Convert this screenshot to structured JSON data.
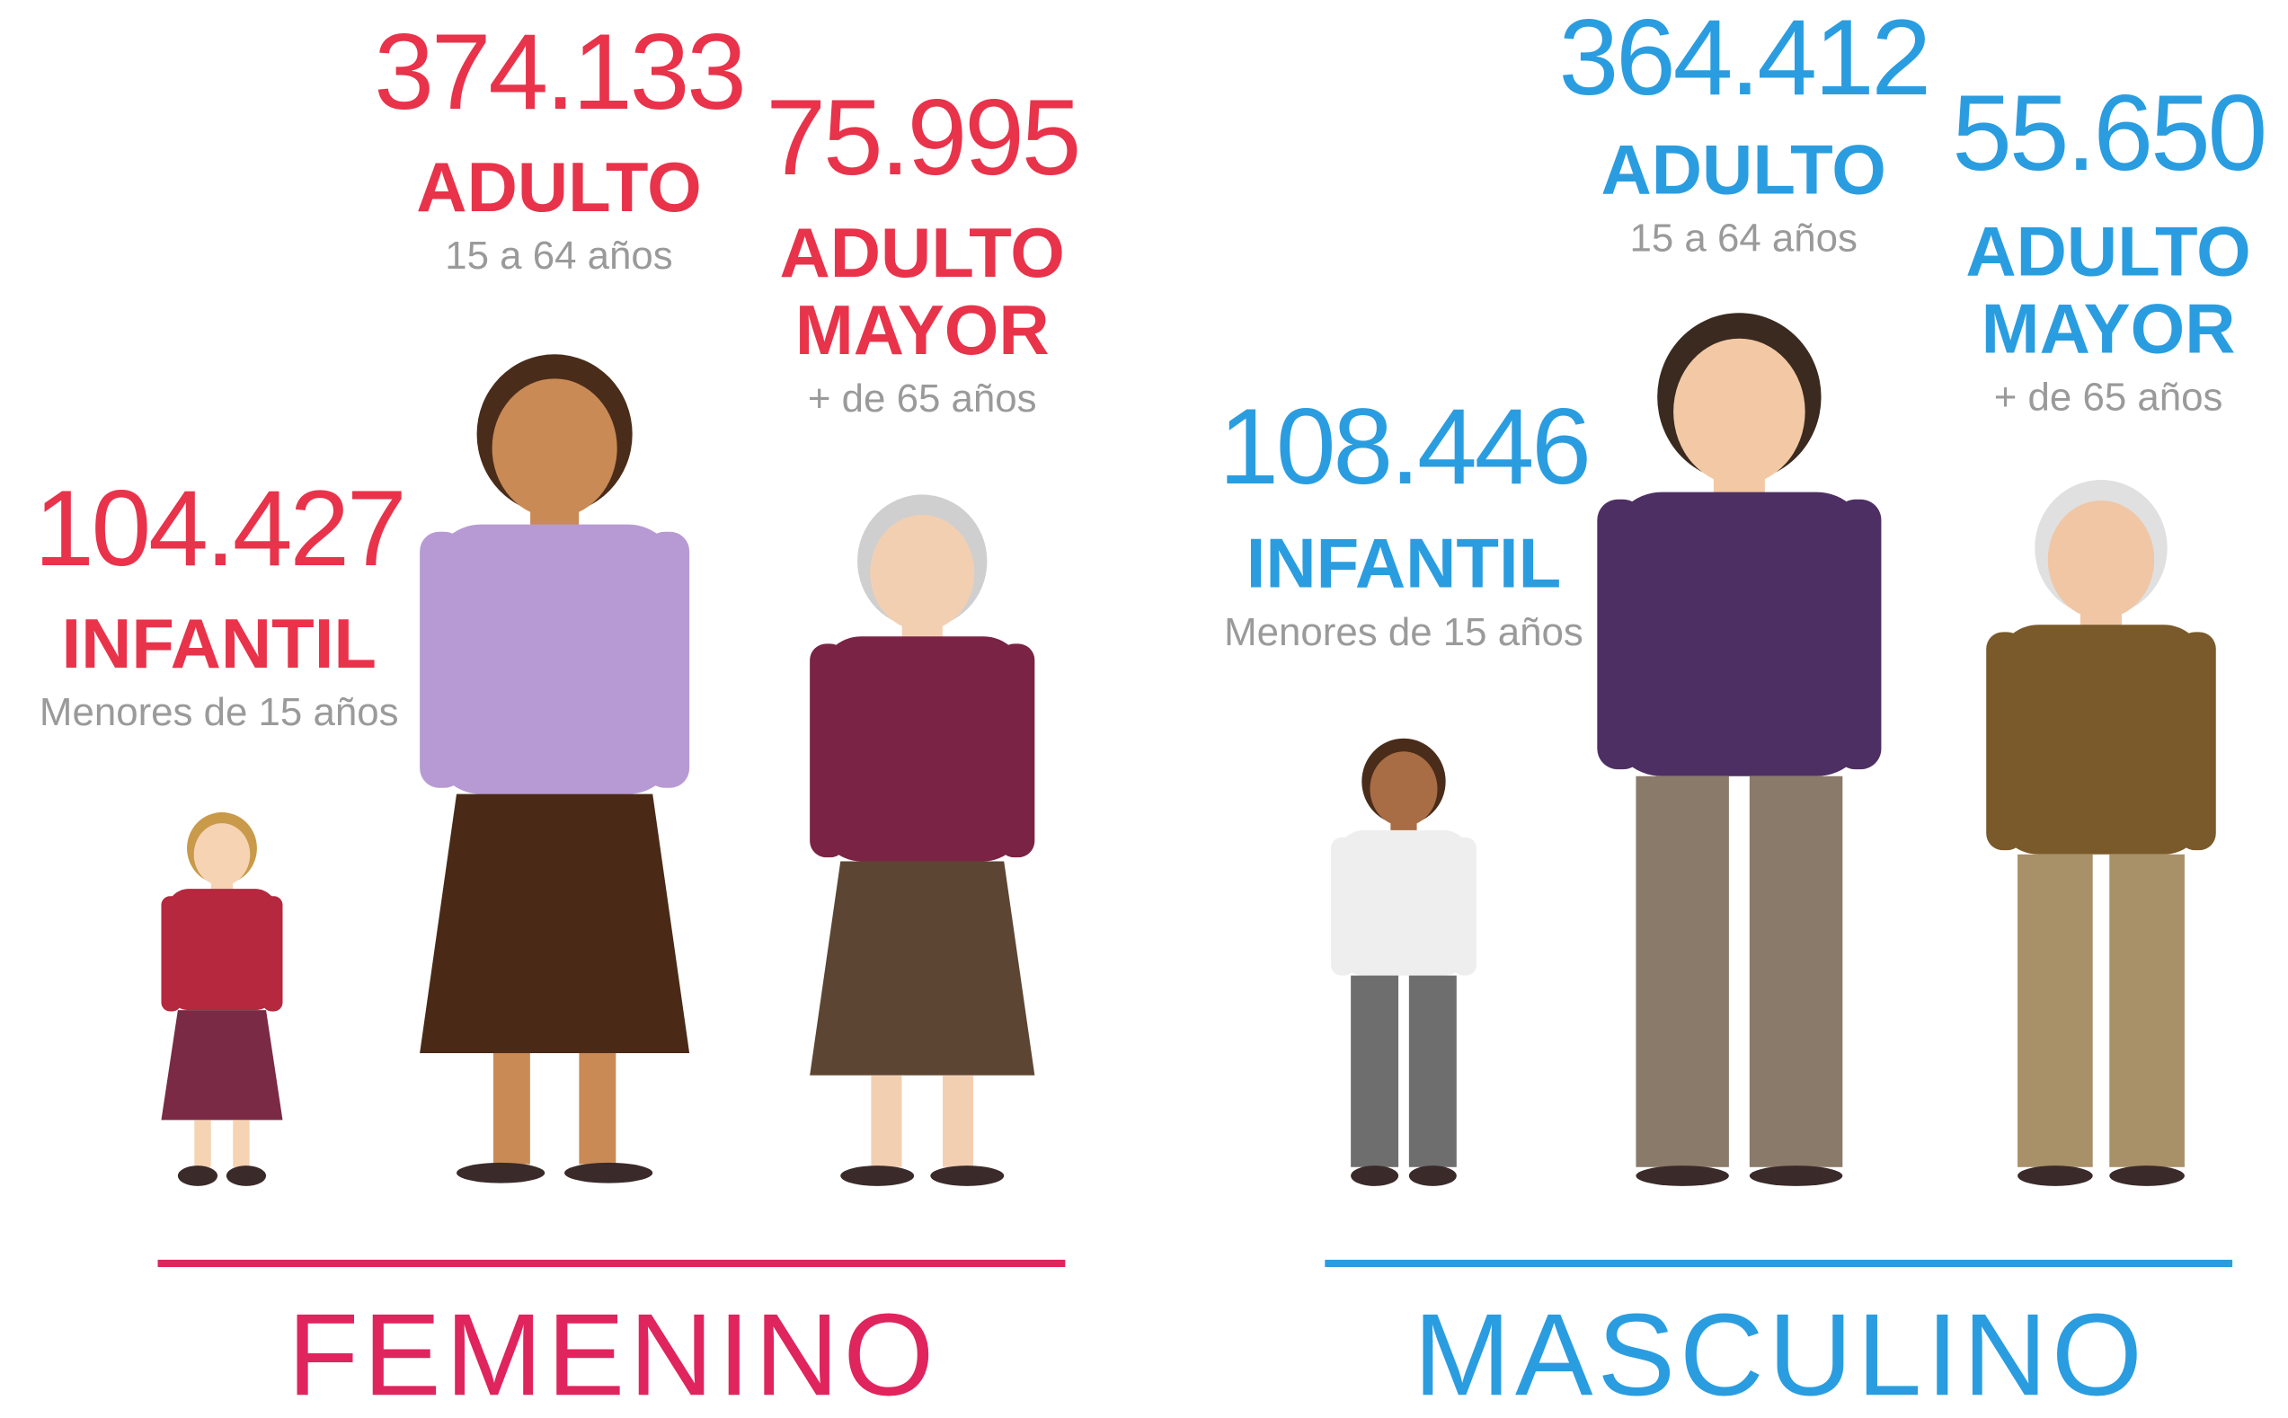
{
  "groups": [
    {
      "title": "FEMENINO",
      "color": "#e8334a",
      "title_color": "#e0245e",
      "items": [
        {
          "number": "104.427",
          "label_lines": [
            "INFANTIL"
          ],
          "sublabel": "Menores de 15 años"
        },
        {
          "number": "374.133",
          "label_lines": [
            "ADULTO"
          ],
          "sublabel": "15 a 64 años"
        },
        {
          "number": "75.995",
          "label_lines": [
            "ADULTO",
            "MAYOR"
          ],
          "sublabel": "+ de 65 años"
        }
      ]
    },
    {
      "title": "MASCULINO",
      "color": "#2a9de0",
      "title_color": "#2a9de0",
      "items": [
        {
          "number": "108.446",
          "label_lines": [
            "INFANTIL"
          ],
          "sublabel": "Menores de 15 años"
        },
        {
          "number": "364.412",
          "label_lines": [
            "ADULTO"
          ],
          "sublabel": "15 a 64 años"
        },
        {
          "number": "55.650",
          "label_lines": [
            "ADULTO",
            "MAYOR"
          ],
          "sublabel": "+ de 65 años"
        }
      ]
    }
  ]
}
